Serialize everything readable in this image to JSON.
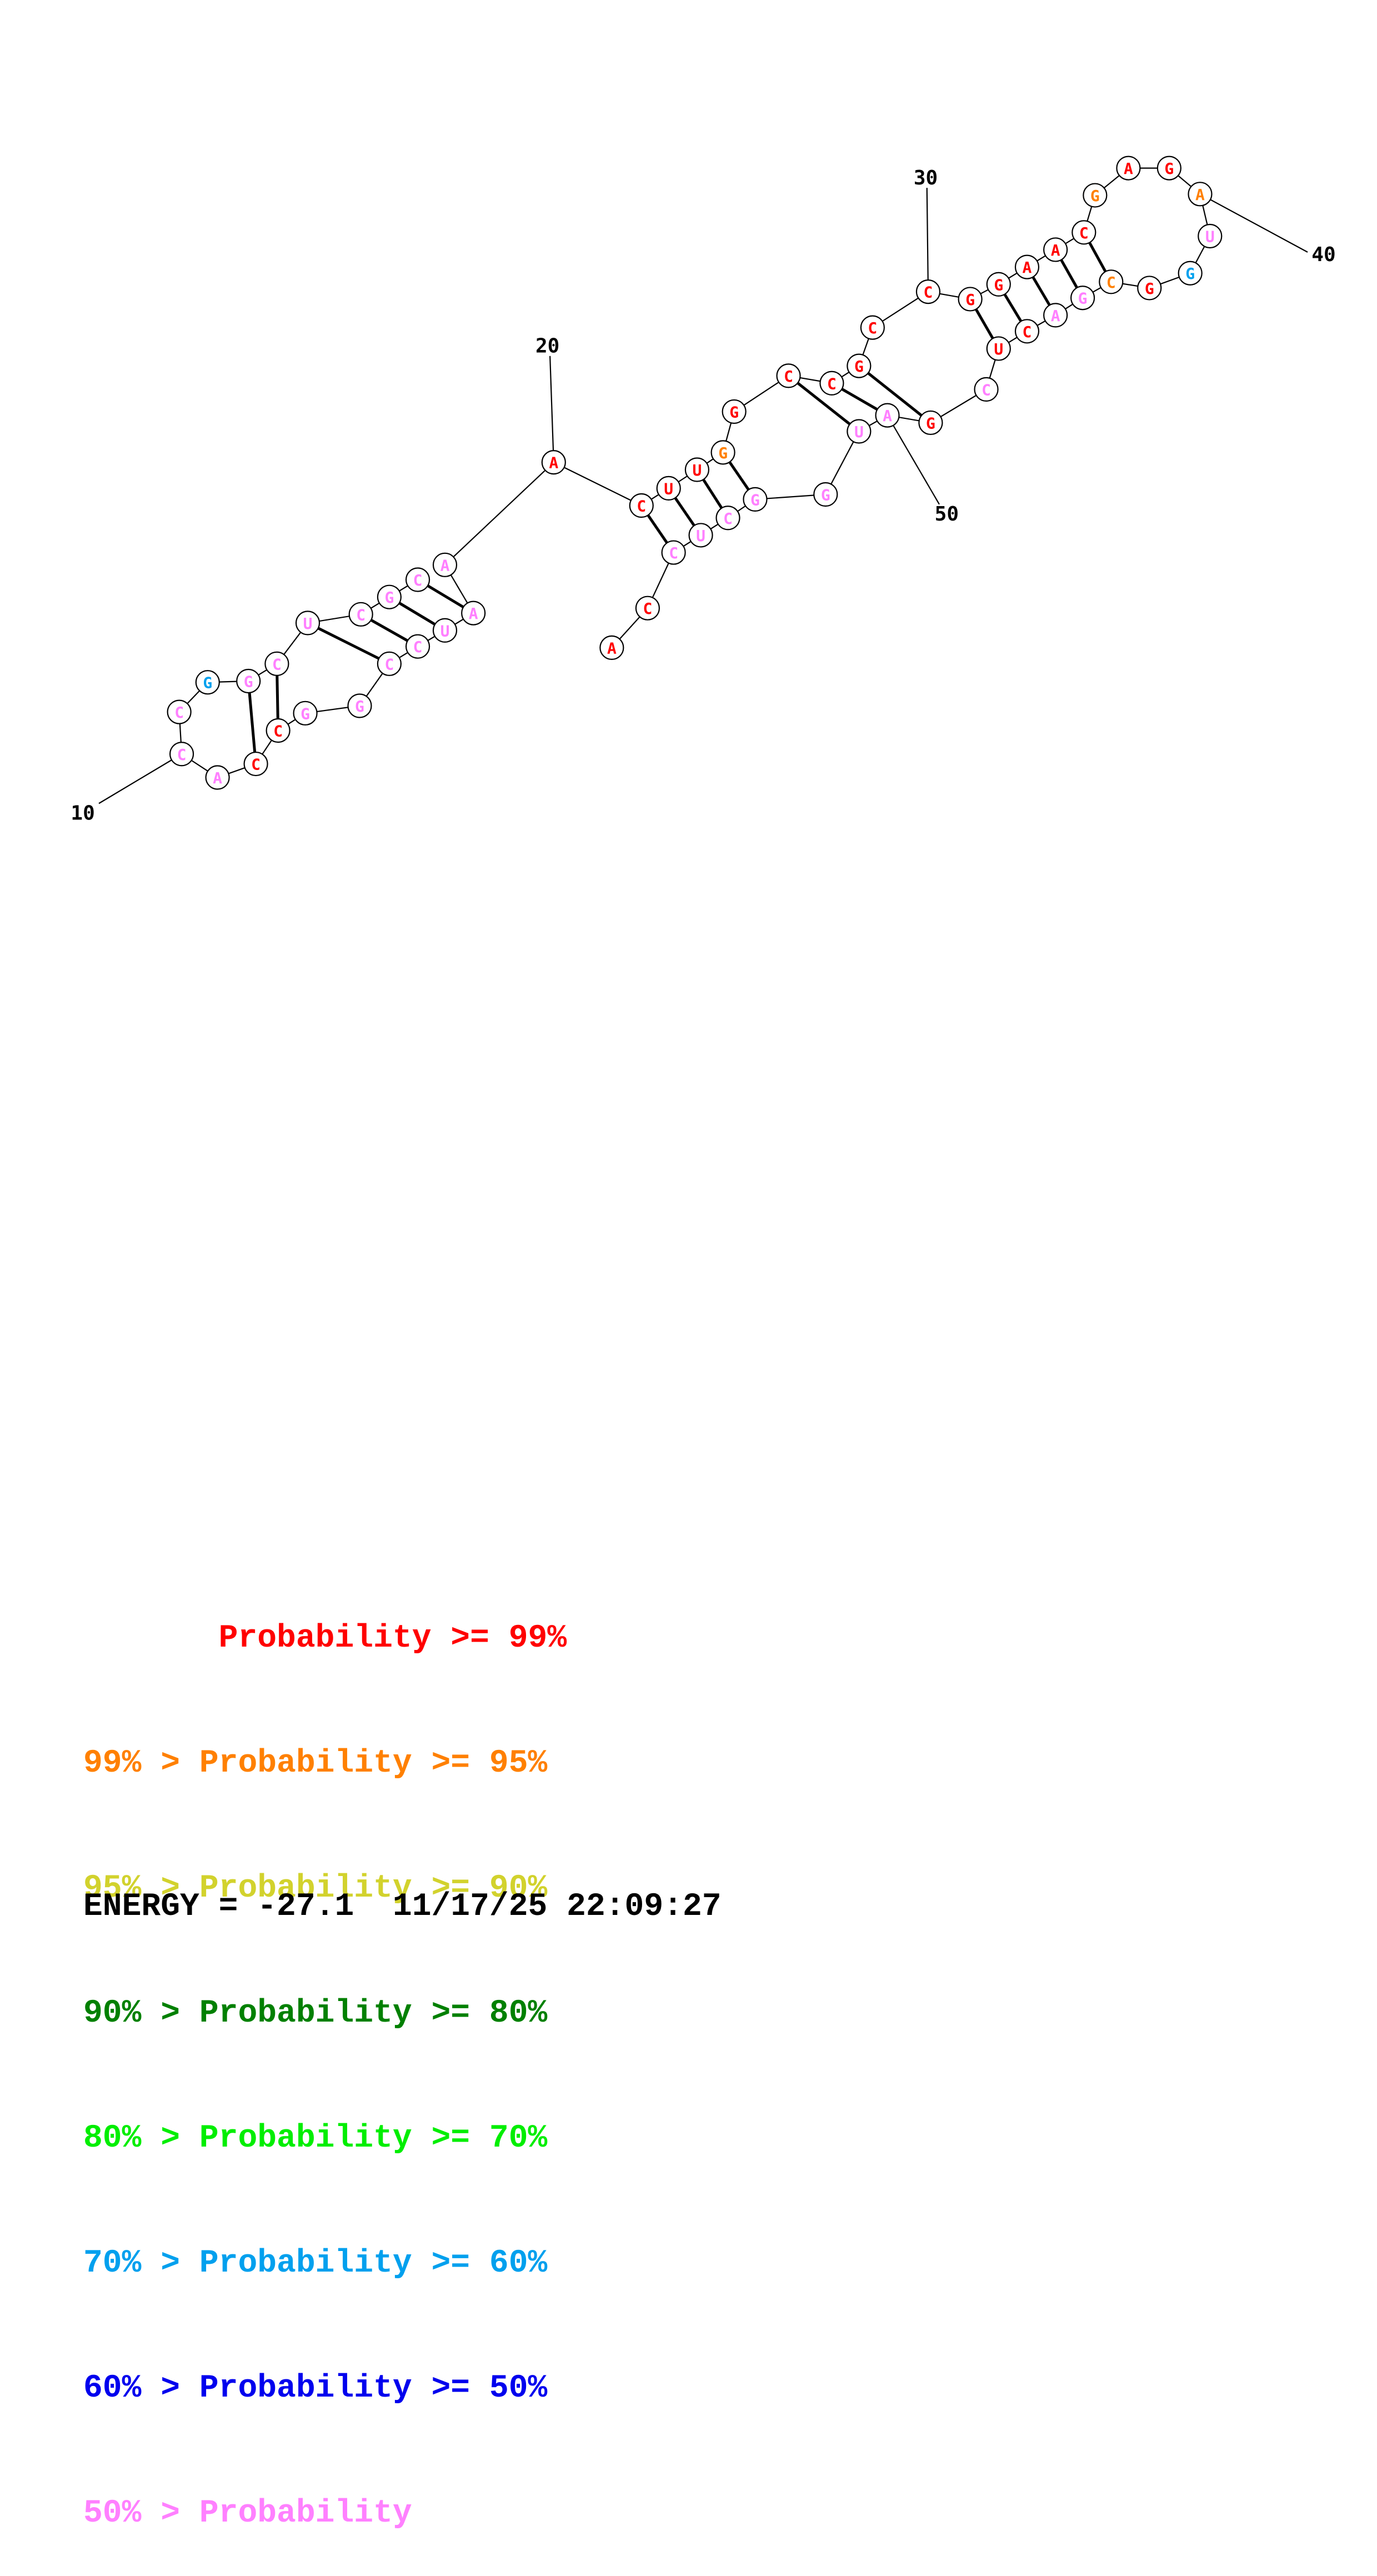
{
  "colors": {
    "p99": "#ff0000",
    "p95": "#ff8000",
    "p90": "#d2d22d",
    "p80": "#008000",
    "p70": "#00ee00",
    "p60": "#00a0ee",
    "p50": "#0000ee",
    "plow": "#ff80ff"
  },
  "nucleotides": [
    {
      "n": 1,
      "base": "A",
      "p": "p99"
    },
    {
      "n": 2,
      "base": "C",
      "p": "p99"
    },
    {
      "n": 3,
      "base": "C",
      "p": "plow"
    },
    {
      "n": 4,
      "base": "U",
      "p": "plow"
    },
    {
      "n": 5,
      "base": "C",
      "p": "plow"
    },
    {
      "n": 6,
      "base": "G",
      "p": "plow"
    },
    {
      "n": 7,
      "base": "G",
      "p": "plow"
    },
    {
      "n": 8,
      "base": "U",
      "p": "p99"
    },
    {
      "n": 9,
      "base": "A",
      "p": "p99"
    },
    {
      "n": 10,
      "base": "G",
      "p": "plow"
    },
    {
      "n": 11,
      "base": "C",
      "p": "plow"
    },
    {
      "n": 12,
      "base": "U",
      "p": "plow"
    },
    {
      "n": 13,
      "base": "C",
      "p": "plow"
    },
    {
      "n": 14,
      "base": "A",
      "p": "plow"
    },
    {
      "n": 15,
      "base": "G",
      "p": "p60"
    },
    {
      "n": 16,
      "base": "C",
      "p": "plow"
    },
    {
      "n": 17,
      "base": "G",
      "p": "plow"
    },
    {
      "n": 18,
      "base": "G",
      "p": "plow"
    },
    {
      "n": 19,
      "base": "U",
      "p": "plow"
    },
    {
      "n": 20,
      "base": "A",
      "p": "p99"
    },
    {
      "n": 21,
      "base": "G",
      "p": "plow"
    },
    {
      "n": 22,
      "base": "A",
      "p": "plow"
    },
    {
      "n": 23,
      "base": "G",
      "p": "plow"
    },
    {
      "n": 24,
      "base": "C",
      "p": "plow"
    },
    {
      "n": 25,
      "base": "A",
      "p": "p99"
    },
    {
      "n": 26,
      "base": "A",
      "p": "p99"
    },
    {
      "n": 27,
      "base": "G",
      "p": "plow"
    },
    {
      "n": 28,
      "base": "G",
      "p": "plow"
    },
    {
      "n": 29,
      "base": "C",
      "p": "p60"
    },
    {
      "n": 30,
      "base": "C",
      "p": "p99"
    },
    {
      "n": 31,
      "base": "G",
      "p": "p95"
    },
    {
      "n": 32,
      "base": "C",
      "p": "p99"
    },
    {
      "n": 33,
      "base": "C",
      "p": "p99"
    },
    {
      "n": 34,
      "base": "G",
      "p": "p99"
    },
    {
      "n": 35,
      "base": "G",
      "p": "p99"
    },
    {
      "n": 36,
      "base": "U",
      "p": "p95"
    },
    {
      "n": 37,
      "base": "U",
      "p": "p99"
    },
    {
      "n": 38,
      "base": "C",
      "p": "p99"
    },
    {
      "n": 39,
      "base": "A",
      "p": "p99"
    },
    {
      "n": 40,
      "base": "A",
      "p": "p99"
    },
    {
      "n": 41,
      "base": "A",
      "p": "p95"
    },
    {
      "n": 42,
      "base": "U",
      "p": "p99"
    },
    {
      "n": 43,
      "base": "C",
      "p": "p99"
    },
    {
      "n": 44,
      "base": "C",
      "p": "p99"
    },
    {
      "n": 45,
      "base": "G",
      "p": "p99"
    },
    {
      "n": 46,
      "base": "G",
      "p": "p99"
    },
    {
      "n": 47,
      "base": "C",
      "p": "p95"
    },
    {
      "n": 48,
      "base": "C",
      "p": "plow"
    },
    {
      "n": 49,
      "base": "A",
      "p": "plow"
    },
    {
      "n": 50,
      "base": "C",
      "p": "plow"
    },
    {
      "n": 51,
      "base": "C",
      "p": "plow"
    },
    {
      "n": 52,
      "base": "G",
      "p": "plow"
    },
    {
      "n": 53,
      "base": "G",
      "p": "plow"
    },
    {
      "n": 54,
      "base": "C",
      "p": "plow"
    },
    {
      "n": 55,
      "base": "U",
      "p": "plow"
    },
    {
      "n": 56,
      "base": "C",
      "p": "plow"
    },
    {
      "n": 57,
      "base": "G",
      "p": "plow"
    },
    {
      "n": 58,
      "base": "C",
      "p": "plow"
    },
    {
      "n": 59,
      "base": "C",
      "p": "plow"
    },
    {
      "n": 60,
      "base": "G",
      "p": "plow"
    },
    {
      "n": 61,
      "base": "U",
      "p": "plow"
    },
    {
      "n": 62,
      "base": "G",
      "p": "plow"
    }
  ],
  "pairs": [
    [
      3,
      21
    ],
    [
      4,
      22
    ],
    [
      5,
      23
    ],
    [
      6,
      24
    ],
    [
      7,
      10
    ],
    [
      9,
      13
    ],
    [
      16,
      20
    ],
    [
      17,
      19
    ],
    [
      27,
      51
    ],
    [
      28,
      50
    ],
    [
      31,
      47
    ],
    [
      32,
      46
    ],
    [
      33,
      45
    ],
    [
      34,
      44
    ]
  ],
  "ticks": [
    {
      "label": "10"
    },
    {
      "label": "20"
    },
    {
      "label": "30"
    },
    {
      "label": "40"
    },
    {
      "label": "50"
    }
  ],
  "legend": [
    {
      "text": "       Probability >= 99%",
      "color": "p99"
    },
    {
      "text": "99% > Probability >= 95%",
      "color": "p95"
    },
    {
      "text": "95% > Probability >= 90%",
      "color": "p90"
    },
    {
      "text": "90% > Probability >= 80%",
      "color": "p80"
    },
    {
      "text": "80% > Probability >= 70%",
      "color": "p70"
    },
    {
      "text": "70% > Probability >= 60%",
      "color": "p60"
    },
    {
      "text": "60% > Probability >= 50%",
      "color": "p50"
    },
    {
      "text": "50% > Probability",
      "color": "plow"
    }
  ],
  "footer": {
    "energy": "ENERGY = -27.1  11/17/25 22:09:27"
  }
}
